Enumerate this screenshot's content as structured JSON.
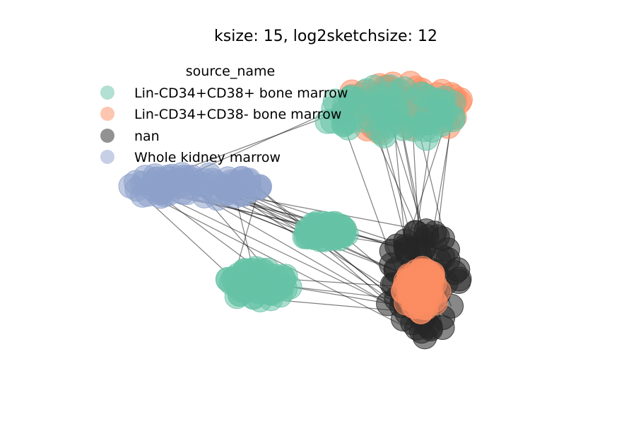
{
  "chart_data": {
    "type": "scatter",
    "title": "ksize: 15, log2sketchsize: 12",
    "xlabel": "",
    "ylabel": "",
    "axes_visible": false,
    "grid": false,
    "legend": {
      "title": "source_name",
      "placement": "top-left",
      "entries": [
        {
          "label": "Lin-CD34+CD38+ bone marrow",
          "color": "#66c2a5"
        },
        {
          "label": "Lin-CD34+CD38- bone marrow",
          "color": "#fc8d62"
        },
        {
          "label": "nan",
          "color": "#262626"
        },
        {
          "label": "Whole kidney marrow",
          "color": "#8da0cb"
        }
      ]
    },
    "series": [
      {
        "name": "Lin-CD34+CD38+ bone marrow",
        "color": "#66c2a5",
        "clusters": [
          {
            "cx": 0.64,
            "cy": 0.82,
            "rx": 0.14,
            "ry": 0.09
          },
          {
            "cx": 0.36,
            "cy": 0.3,
            "rx": 0.07,
            "ry": 0.05
          },
          {
            "cx": 0.5,
            "cy": 0.46,
            "rx": 0.05,
            "ry": 0.03
          }
        ]
      },
      {
        "name": "Lin-CD34+CD38- bone marrow",
        "color": "#fc8d62",
        "clusters": [
          {
            "cx": 0.66,
            "cy": 0.84,
            "rx": 0.14,
            "ry": 0.08
          },
          {
            "cx": 0.7,
            "cy": 0.28,
            "rx": 0.04,
            "ry": 0.07
          }
        ]
      },
      {
        "name": "nan",
        "color": "#262626",
        "clusters": [
          {
            "cx": 0.7,
            "cy": 0.3,
            "rx": 0.08,
            "ry": 0.17
          }
        ]
      },
      {
        "name": "Whole kidney marrow",
        "color": "#8da0cb",
        "clusters": [
          {
            "cx": 0.22,
            "cy": 0.6,
            "rx": 0.15,
            "ry": 0.04
          }
        ]
      }
    ],
    "xlim": [
      0,
      1
    ],
    "ylim": [
      0,
      1
    ]
  }
}
